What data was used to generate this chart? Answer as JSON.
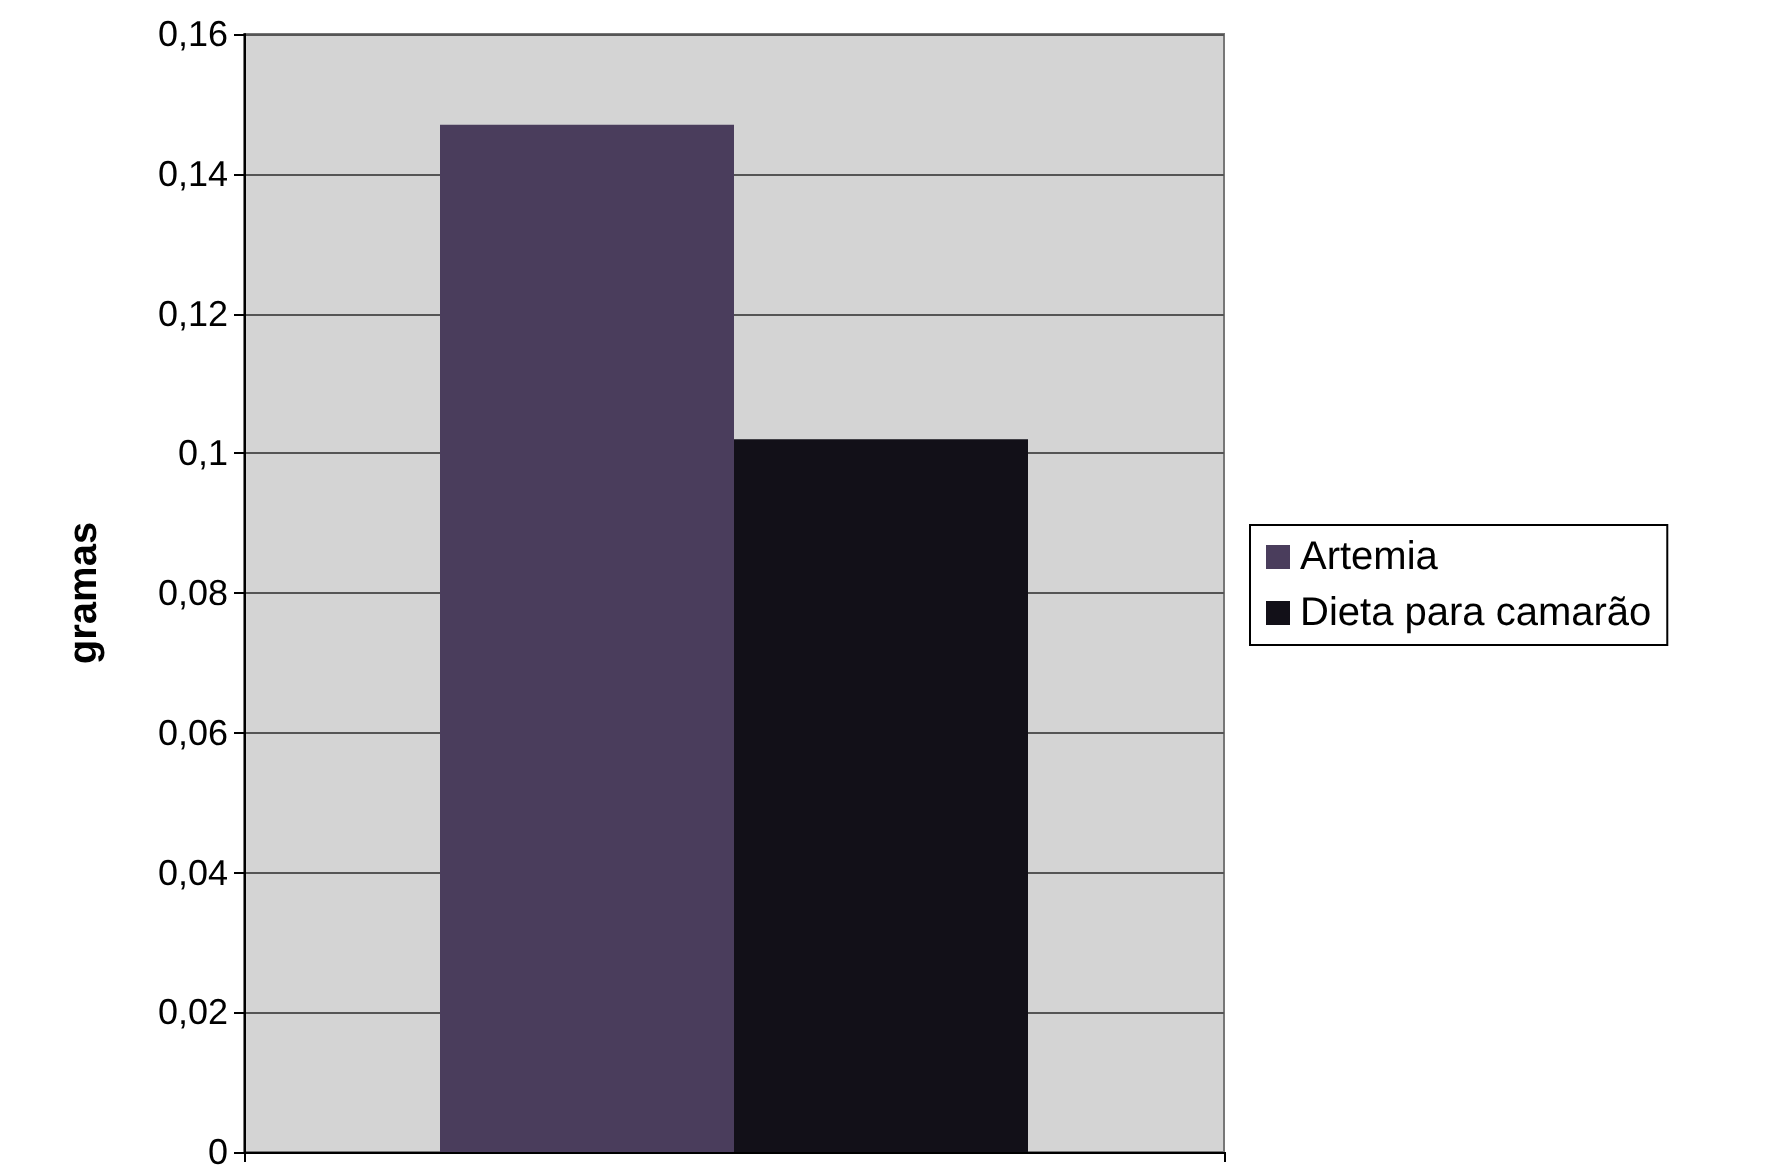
{
  "chart_data": {
    "type": "bar",
    "ylabel": "gramas",
    "categories": [
      null
    ],
    "series": [
      {
        "name": "Artemia",
        "color": "#4a3d5c",
        "values": [
          0.147
        ]
      },
      {
        "name": "Dieta para camarão",
        "color": "#121018",
        "values": [
          0.102
        ]
      }
    ],
    "ylim": [
      0,
      0.16
    ],
    "yticks": [
      {
        "value": 0,
        "label": "0"
      },
      {
        "value": 0.02,
        "label": "0,02"
      },
      {
        "value": 0.04,
        "label": "0,04"
      },
      {
        "value": 0.06,
        "label": "0,06"
      },
      {
        "value": 0.08,
        "label": "0,08"
      },
      {
        "value": 0.1,
        "label": "0,1"
      },
      {
        "value": 0.12,
        "label": "0,12"
      },
      {
        "value": 0.14,
        "label": "0,14"
      },
      {
        "value": 0.16,
        "label": "0,16"
      }
    ],
    "grid": "y",
    "legend": "right"
  }
}
